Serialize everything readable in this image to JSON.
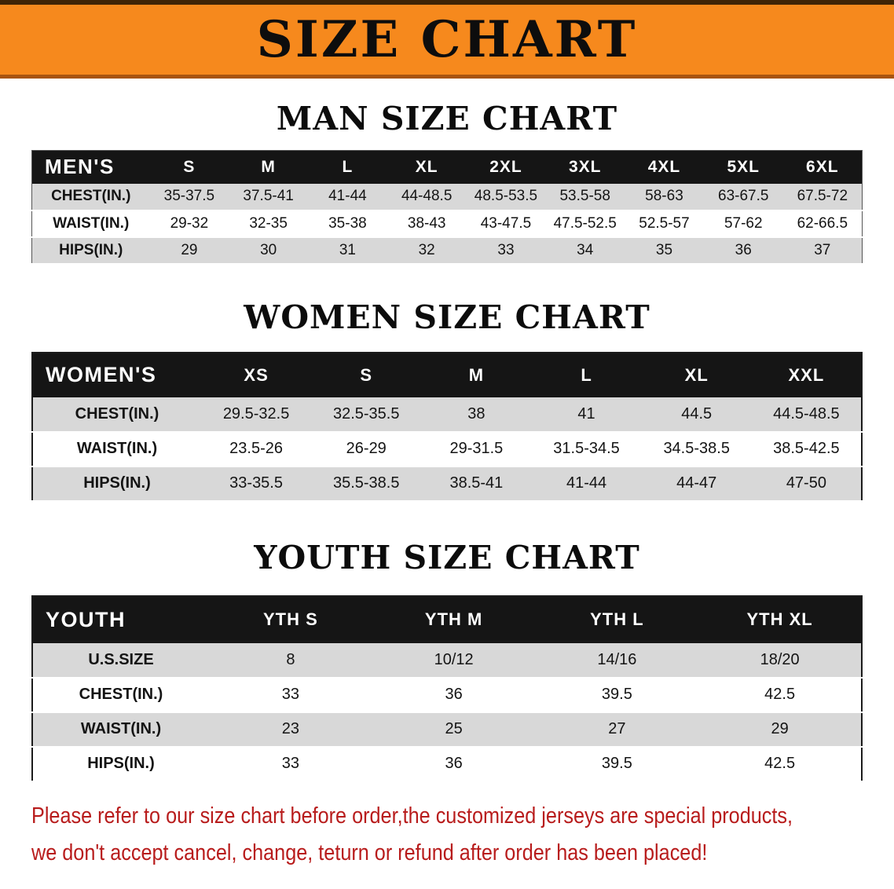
{
  "banner": {
    "title": "SIZE CHART"
  },
  "sections": {
    "men": {
      "heading": "MAN SIZE CHART",
      "label": "MEN'S",
      "columns": [
        "S",
        "M",
        "L",
        "XL",
        "2XL",
        "3XL",
        "4XL",
        "5XL",
        "6XL"
      ],
      "rows": [
        {
          "label": "CHEST(IN.)",
          "values": [
            "35-37.5",
            "37.5-41",
            "41-44",
            "44-48.5",
            "48.5-53.5",
            "53.5-58",
            "58-63",
            "63-67.5",
            "67.5-72"
          ]
        },
        {
          "label": "WAIST(IN.)",
          "values": [
            "29-32",
            "32-35",
            "35-38",
            "38-43",
            "43-47.5",
            "47.5-52.5",
            "52.5-57",
            "57-62",
            "62-66.5"
          ]
        },
        {
          "label": "HIPS(IN.)",
          "values": [
            "29",
            "30",
            "31",
            "32",
            "33",
            "34",
            "35",
            "36",
            "37"
          ]
        }
      ]
    },
    "women": {
      "heading": "WOMEN SIZE CHART",
      "label": "WOMEN'S",
      "columns": [
        "XS",
        "S",
        "M",
        "L",
        "XL",
        "XXL"
      ],
      "rows": [
        {
          "label": "CHEST(IN.)",
          "values": [
            "29.5-32.5",
            "32.5-35.5",
            "38",
            "41",
            "44.5",
            "44.5-48.5"
          ]
        },
        {
          "label": "WAIST(IN.)",
          "values": [
            "23.5-26",
            "26-29",
            "29-31.5",
            "31.5-34.5",
            "34.5-38.5",
            "38.5-42.5"
          ]
        },
        {
          "label": "HIPS(IN.)",
          "values": [
            "33-35.5",
            "35.5-38.5",
            "38.5-41",
            "41-44",
            "44-47",
            "47-50"
          ]
        }
      ]
    },
    "youth": {
      "heading": "YOUTH SIZE CHART",
      "label": "YOUTH",
      "columns": [
        "YTH S",
        "YTH M",
        "YTH L",
        "YTH XL"
      ],
      "rows": [
        {
          "label": "U.S.SIZE",
          "values": [
            "8",
            "10/12",
            "14/16",
            "18/20"
          ]
        },
        {
          "label": "CHEST(IN.)",
          "values": [
            "33",
            "36",
            "39.5",
            "42.5"
          ]
        },
        {
          "label": "WAIST(IN.)",
          "values": [
            "23",
            "25",
            "27",
            "29"
          ]
        },
        {
          "label": "HIPS(IN.)",
          "values": [
            "33",
            "36",
            "39.5",
            "42.5"
          ]
        }
      ]
    }
  },
  "footer": {
    "line1": "Please refer to our size chart before order,the customized jerseys are special products,",
    "line2": "we don't accept cancel, change, teturn or refund after order has been placed!"
  },
  "colors": {
    "banner_orange": "#f6891d",
    "header_black": "#151515",
    "row_gray": "#d8d8d8",
    "footer_red": "#b81c1c"
  }
}
